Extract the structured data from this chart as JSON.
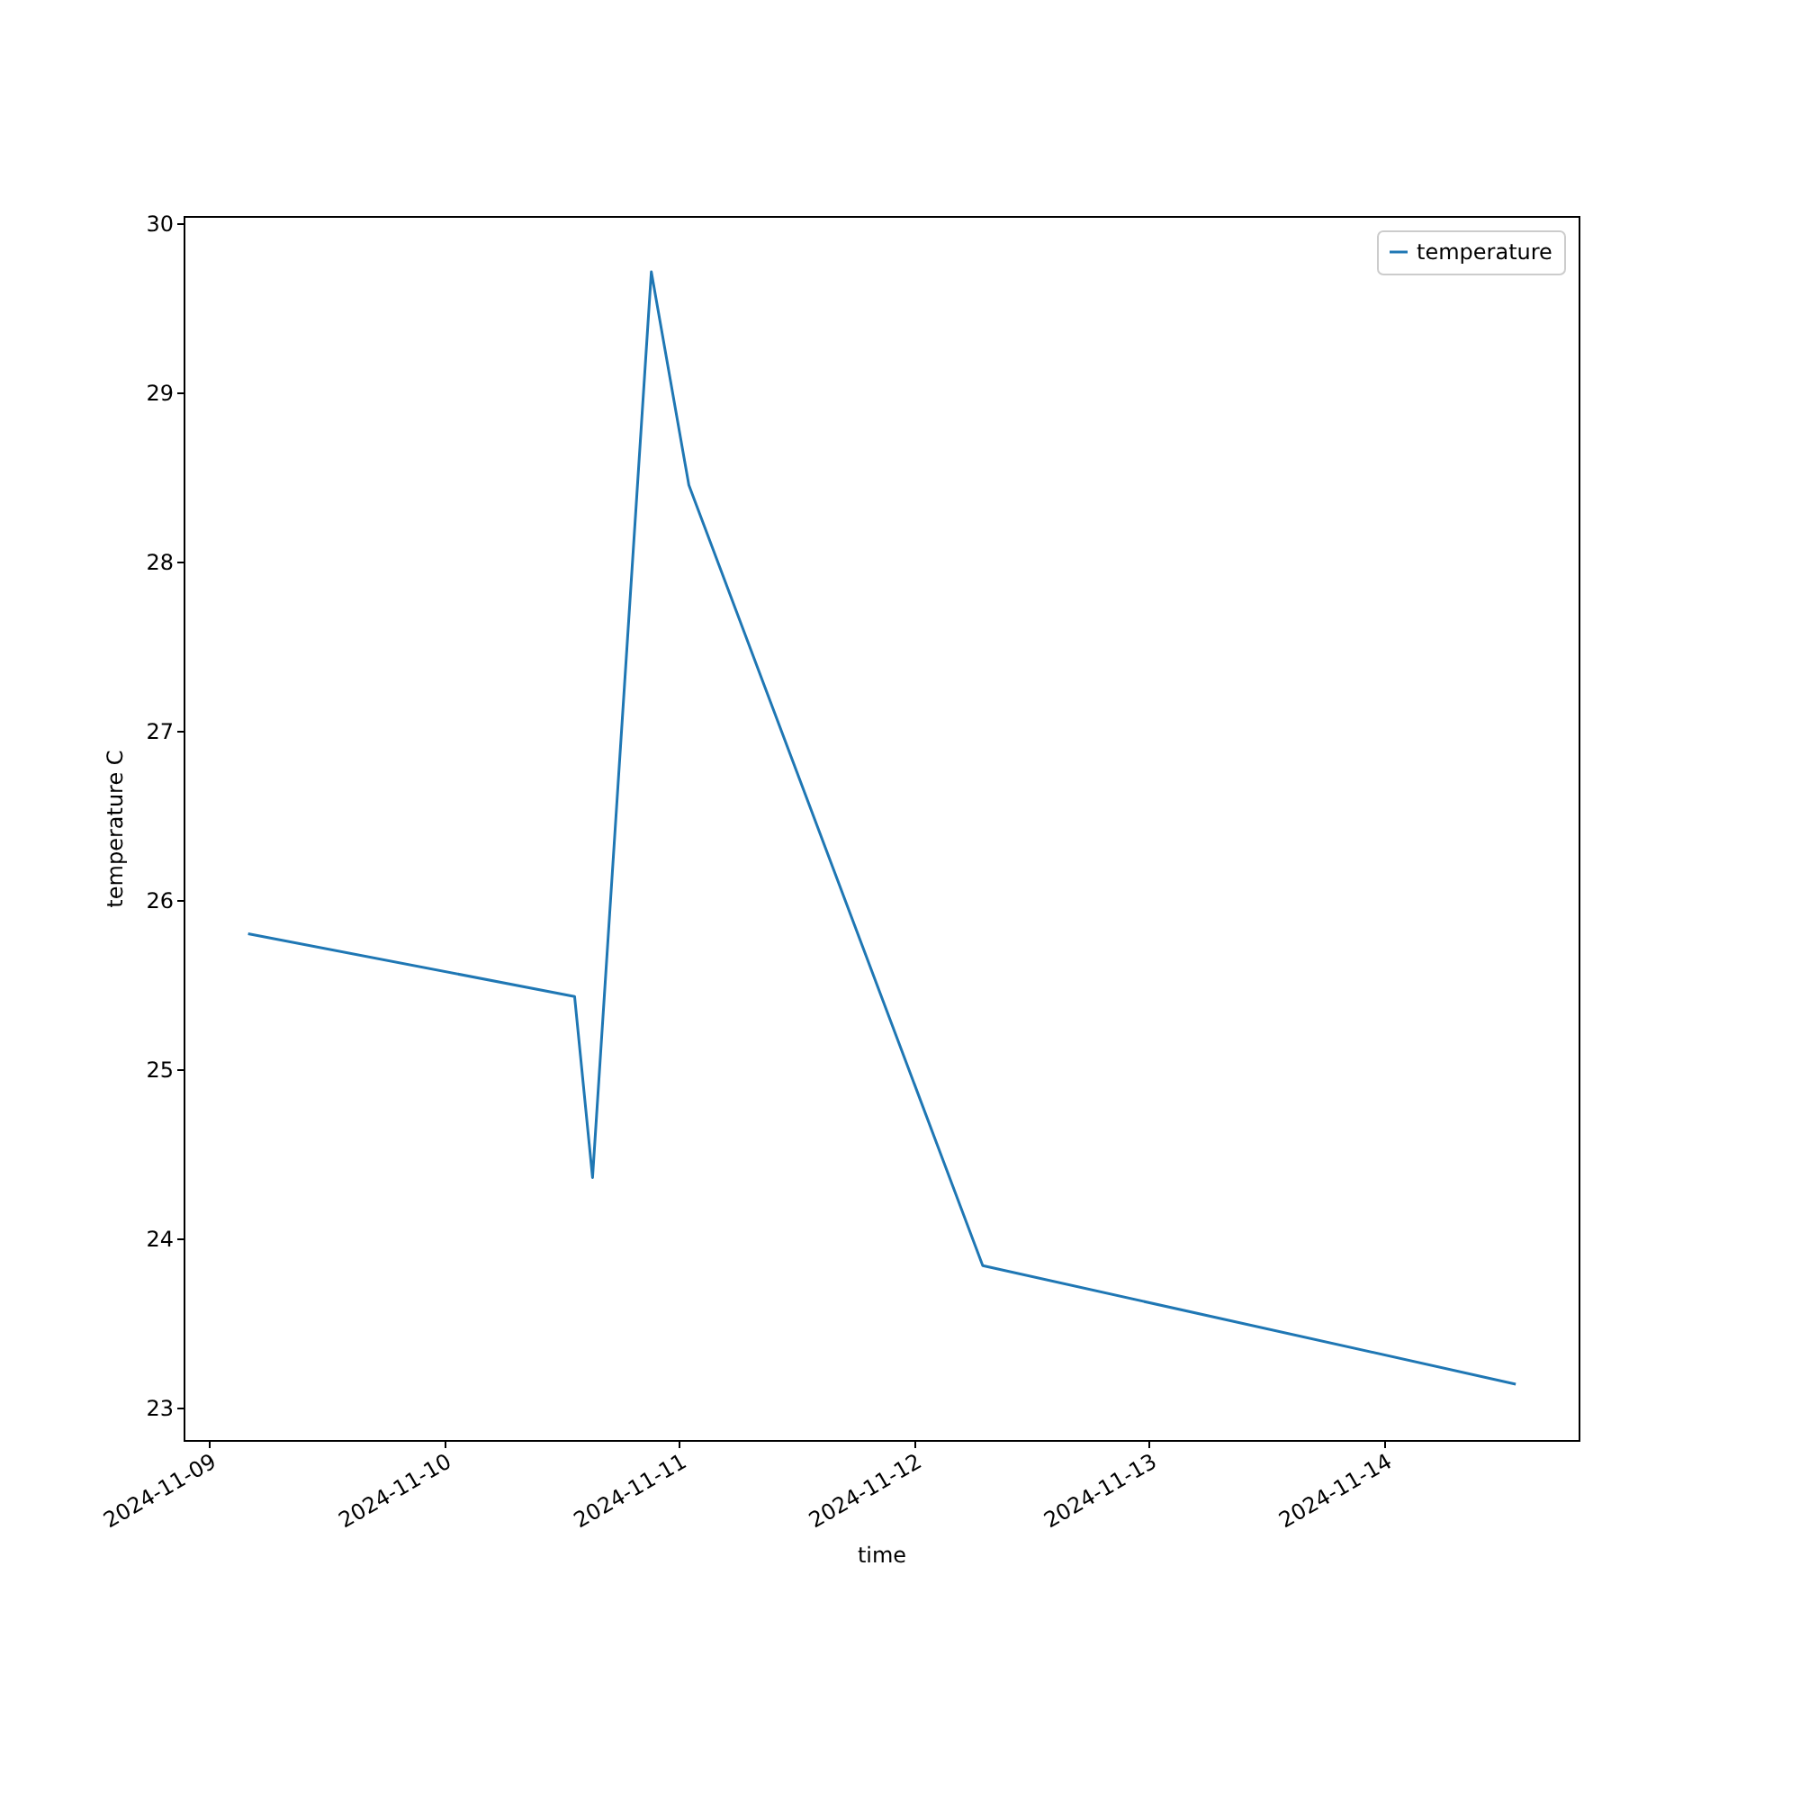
{
  "chart_data": {
    "type": "line",
    "xlabel": "time",
    "ylabel": "temperature C",
    "x": [
      "2024-11-09T04:00",
      "2024-11-10T13:20",
      "2024-11-10T15:10",
      "2024-11-10T21:10",
      "2024-11-11T01:00",
      "2024-11-12T07:00",
      "2024-11-14T13:25"
    ],
    "series": [
      {
        "name": "temperature",
        "color": "#1f77b4",
        "values": [
          25.8,
          25.43,
          24.36,
          29.71,
          28.45,
          23.84,
          23.14
        ]
      }
    ],
    "xlim": [
      "2024-11-08T21:25",
      "2024-11-14T19:50"
    ],
    "xticks": [
      "2024-11-09",
      "2024-11-10",
      "2024-11-11",
      "2024-11-12",
      "2024-11-13",
      "2024-11-14"
    ],
    "ylim": [
      22.81,
      30.04
    ],
    "yticks": [
      23,
      24,
      25,
      26,
      27,
      28,
      29,
      30
    ],
    "grid": false,
    "legend": "top right",
    "marker": "none",
    "line_style": "solid"
  }
}
